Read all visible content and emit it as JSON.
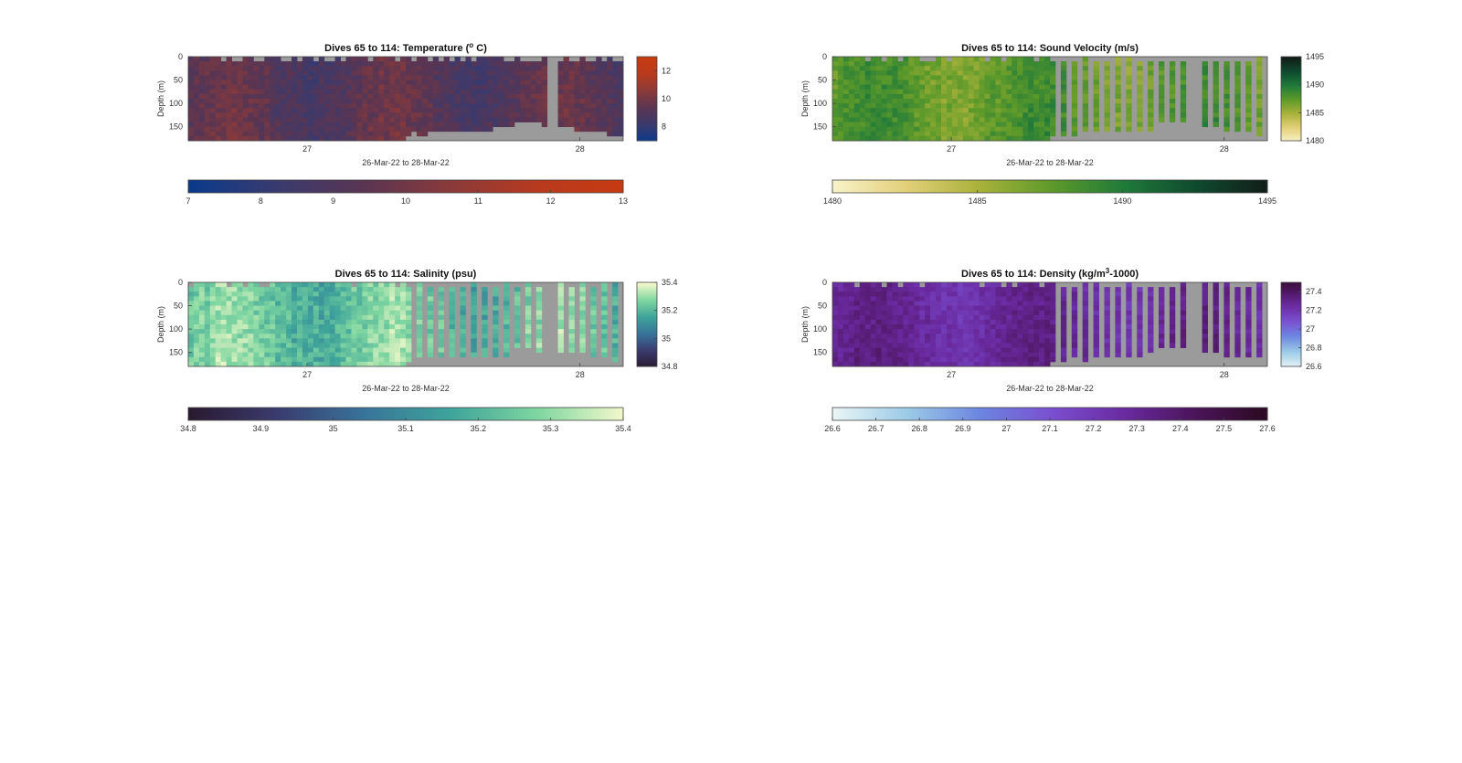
{
  "figure": {
    "background": "#ffffff",
    "no_data_color": "#9b9b9b"
  },
  "chart_data": [
    {
      "type": "heatmap",
      "title": "Dives 65 to 114: Temperature (",
      "title_sup": "o",
      "title_tail": " C)",
      "xlabel": "26-Mar-22 to 28-Mar-22",
      "ylabel": "Depth (m)",
      "x_ticks": [
        "27",
        "28"
      ],
      "x_tick_pos": [
        26.99,
        28.0
      ],
      "xlim": [
        26.55,
        28.16
      ],
      "y_ticks": [
        "0",
        "50",
        "100",
        "150"
      ],
      "y_tick_vals": [
        0,
        50,
        100,
        150
      ],
      "ylim": [
        0,
        180
      ],
      "clim": [
        7,
        13
      ],
      "colormap": [
        "#0a3a8c",
        "#3a3a6e",
        "#5a3552",
        "#8a3a3a",
        "#b83a1e",
        "#c83a10"
      ],
      "inset_cb_ticks": [
        "12",
        "10",
        "8"
      ],
      "inset_cb_vals": [
        12,
        10,
        8
      ],
      "cb_ticks": [
        "7",
        "8",
        "9",
        "10",
        "11",
        "12",
        "13"
      ],
      "cb_vals": [
        7,
        8,
        9,
        10,
        11,
        12,
        13
      ],
      "profiles": "continuous",
      "value_range": [
        8.5,
        10.5
      ]
    },
    {
      "type": "heatmap",
      "title": "Dives 65 to 114: Sound Velocity (m/s)",
      "xlabel": "26-Mar-22 to 28-Mar-22",
      "ylabel": "Depth (m)",
      "x_ticks": [
        "27",
        "28"
      ],
      "x_tick_pos": [
        26.99,
        28.0
      ],
      "xlim": [
        26.55,
        28.16
      ],
      "y_ticks": [
        "0",
        "50",
        "100",
        "150"
      ],
      "y_tick_vals": [
        0,
        50,
        100,
        150
      ],
      "ylim": [
        0,
        180
      ],
      "clim": [
        1480,
        1495
      ],
      "colormap": [
        "#f8f2c8",
        "#e2cf78",
        "#a9b23a",
        "#5e9a2a",
        "#1f7a3a",
        "#0f4a2e",
        "#111c18"
      ],
      "inset_cb_ticks": [
        "1495",
        "1490",
        "1485",
        "1480"
      ],
      "inset_cb_vals": [
        1495,
        1490,
        1485,
        1480
      ],
      "cb_ticks": [
        "1480",
        "1485",
        "1490",
        "1495"
      ],
      "cb_vals": [
        1480,
        1485,
        1490,
        1495
      ],
      "profiles": "striped",
      "value_range": [
        1486,
        1490
      ]
    },
    {
      "type": "heatmap",
      "title": "Dives 65 to 114: Salinity (psu)",
      "xlabel": "26-Mar-22 to 28-Mar-22",
      "ylabel": "Depth (m)",
      "x_ticks": [
        "27",
        "28"
      ],
      "x_tick_pos": [
        26.99,
        28.0
      ],
      "xlim": [
        26.55,
        28.16
      ],
      "y_ticks": [
        "0",
        "50",
        "100",
        "150"
      ],
      "y_tick_vals": [
        0,
        50,
        100,
        150
      ],
      "ylim": [
        0,
        180
      ],
      "clim": [
        34.8,
        35.4
      ],
      "colormap": [
        "#2a1a30",
        "#3a3b6e",
        "#38749a",
        "#3fa49a",
        "#7fd6a0",
        "#f5f9cc"
      ],
      "inset_cb_ticks": [
        "35.4",
        "35.2",
        "35",
        "34.8"
      ],
      "inset_cb_vals": [
        35.4,
        35.2,
        35.0,
        34.8
      ],
      "cb_ticks": [
        "34.8",
        "34.9",
        "35",
        "35.1",
        "35.2",
        "35.3",
        "35.4"
      ],
      "cb_vals": [
        34.8,
        34.9,
        35.0,
        35.1,
        35.2,
        35.3,
        35.4
      ],
      "profiles": "striped",
      "value_range": [
        35.15,
        35.38
      ]
    },
    {
      "type": "heatmap",
      "title": "Dives 65 to 114: Density (kg/m",
      "title_sup": "3",
      "title_tail": "-1000)",
      "xlabel": "26-Mar-22 to 28-Mar-22",
      "ylabel": "Depth (m)",
      "x_ticks": [
        "27",
        "28"
      ],
      "x_tick_pos": [
        26.99,
        28.0
      ],
      "xlim": [
        26.55,
        28.16
      ],
      "y_ticks": [
        "0",
        "50",
        "100",
        "150"
      ],
      "y_tick_vals": [
        0,
        50,
        100,
        150
      ],
      "ylim": [
        0,
        180
      ],
      "clim": [
        26.6,
        27.6
      ],
      "colormap": [
        "#e8f4f6",
        "#9ccbe6",
        "#6c86e0",
        "#7a4fd0",
        "#6a2aa0",
        "#4a1458",
        "#2a0a20"
      ],
      "inset_cb_ticks": [
        "27.4",
        "27.2",
        "27",
        "26.8",
        "26.6"
      ],
      "inset_cb_vals": [
        27.4,
        27.2,
        27.0,
        26.8,
        26.6
      ],
      "inset_clim": [
        26.6,
        27.5
      ],
      "cb_ticks": [
        "26.6",
        "26.7",
        "26.8",
        "26.9",
        "27",
        "27.1",
        "27.2",
        "27.3",
        "27.4",
        "27.5",
        "27.6"
      ],
      "cb_vals": [
        26.6,
        26.7,
        26.8,
        26.9,
        27.0,
        27.1,
        27.2,
        27.3,
        27.4,
        27.5,
        27.6
      ],
      "profiles": "striped",
      "value_range": [
        27.2,
        27.4
      ]
    }
  ]
}
